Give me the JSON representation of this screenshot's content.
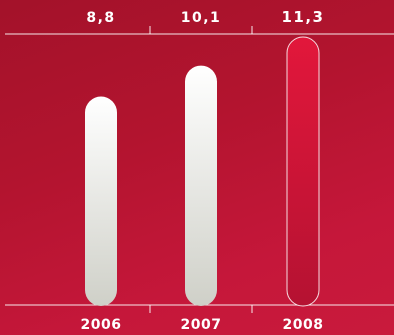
{
  "chart_data": {
    "type": "bar",
    "categories": [
      "2006",
      "2007",
      "2008"
    ],
    "value_labels": [
      "8,8",
      "10,1",
      "11,3"
    ],
    "values": [
      8.8,
      10.1,
      11.3
    ],
    "highlight_index": 2,
    "colors": {
      "background_top": "#a3122a",
      "background_bottom": "#c91a3c",
      "bar_light_top": "#ffffff",
      "bar_light_bottom": "#cfd0c8",
      "bar_highlight_top": "#e2173b",
      "bar_highlight_bottom": "#b51232",
      "text": "#ffffff"
    },
    "title": "",
    "xlabel": "",
    "ylabel": ""
  }
}
